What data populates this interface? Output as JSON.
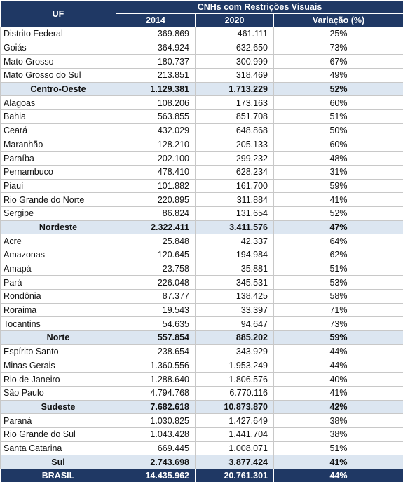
{
  "header": {
    "uf": "UF",
    "group": "CNHs com Restrições Visuais",
    "columns": [
      "2014",
      "2020",
      "Variação (%)"
    ]
  },
  "regions": [
    {
      "states": [
        [
          "Distrito Federal",
          "369.869",
          "461.111",
          "25%"
        ],
        [
          "Goiás",
          "364.924",
          "632.650",
          "73%"
        ],
        [
          "Mato Grosso",
          "180.737",
          "300.999",
          "67%"
        ],
        [
          "Mato Grosso do Sul",
          "213.851",
          "318.469",
          "49%"
        ]
      ],
      "total": [
        "Centro-Oeste",
        "1.129.381",
        "1.713.229",
        "52%"
      ]
    },
    {
      "states": [
        [
          "Alagoas",
          "108.206",
          "173.163",
          "60%"
        ],
        [
          "Bahia",
          "563.855",
          "851.708",
          "51%"
        ],
        [
          "Ceará",
          "432.029",
          "648.868",
          "50%"
        ],
        [
          "Maranhão",
          "128.210",
          "205.133",
          "60%"
        ],
        [
          "Paraíba",
          "202.100",
          "299.232",
          "48%"
        ],
        [
          "Pernambuco",
          "478.410",
          "628.234",
          "31%"
        ],
        [
          "Piauí",
          "101.882",
          "161.700",
          "59%"
        ],
        [
          "Rio Grande do Norte",
          "220.895",
          "311.884",
          "41%"
        ],
        [
          "Sergipe",
          "86.824",
          "131.654",
          "52%"
        ]
      ],
      "total": [
        "Nordeste",
        "2.322.411",
        "3.411.576",
        "47%"
      ]
    },
    {
      "states": [
        [
          "Acre",
          "25.848",
          "42.337",
          "64%"
        ],
        [
          "Amazonas",
          "120.645",
          "194.984",
          "62%"
        ],
        [
          "Amapá",
          "23.758",
          "35.881",
          "51%"
        ],
        [
          "Pará",
          "226.048",
          "345.531",
          "53%"
        ],
        [
          "Rondônia",
          "87.377",
          "138.425",
          "58%"
        ],
        [
          "Roraima",
          "19.543",
          "33.397",
          "71%"
        ],
        [
          "Tocantins",
          "54.635",
          "94.647",
          "73%"
        ]
      ],
      "total": [
        "Norte",
        "557.854",
        "885.202",
        "59%"
      ]
    },
    {
      "states": [
        [
          "Espírito Santo",
          "238.654",
          "343.929",
          "44%"
        ],
        [
          "Minas Gerais",
          "1.360.556",
          "1.953.249",
          "44%"
        ],
        [
          "Rio de Janeiro",
          "1.288.640",
          "1.806.576",
          "40%"
        ],
        [
          "São Paulo",
          "4.794.768",
          "6.770.116",
          "41%"
        ]
      ],
      "total": [
        "Sudeste",
        "7.682.618",
        "10.873.870",
        "42%"
      ]
    },
    {
      "states": [
        [
          "Paraná",
          "1.030.825",
          "1.427.649",
          "38%"
        ],
        [
          "Rio Grande do Sul",
          "1.043.428",
          "1.441.704",
          "38%"
        ],
        [
          "Santa Catarina",
          "669.445",
          "1.008.071",
          "51%"
        ]
      ],
      "total": [
        "Sul",
        "2.743.698",
        "3.877.424",
        "41%"
      ]
    }
  ],
  "brasil": [
    "BRASIL",
    "14.435.962",
    "20.761.301",
    "44%"
  ]
}
